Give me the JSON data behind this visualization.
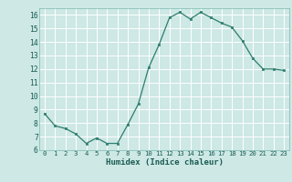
{
  "x": [
    0,
    1,
    2,
    3,
    4,
    5,
    6,
    7,
    8,
    9,
    10,
    11,
    12,
    13,
    14,
    15,
    16,
    17,
    18,
    19,
    20,
    21,
    22,
    23
  ],
  "y": [
    8.7,
    7.8,
    7.6,
    7.2,
    6.5,
    6.9,
    6.5,
    6.5,
    7.9,
    9.4,
    12.1,
    13.8,
    15.8,
    16.2,
    15.7,
    16.2,
    15.8,
    15.4,
    15.1,
    14.1,
    12.8,
    12.0,
    12.0,
    11.9
  ],
  "xlabel": "Humidex (Indice chaleur)",
  "ylim": [
    6,
    16.5
  ],
  "yticks": [
    6,
    7,
    8,
    9,
    10,
    11,
    12,
    13,
    14,
    15,
    16
  ],
  "xticks": [
    0,
    1,
    2,
    3,
    4,
    5,
    6,
    7,
    8,
    9,
    10,
    11,
    12,
    13,
    14,
    15,
    16,
    17,
    18,
    19,
    20,
    21,
    22,
    23
  ],
  "xtick_labels": [
    "0",
    "1",
    "2",
    "3",
    "4",
    "5",
    "6",
    "7",
    "8",
    "9",
    "10",
    "11",
    "12",
    "13",
    "14",
    "15",
    "16",
    "17",
    "18",
    "19",
    "20",
    "21",
    "22",
    "23"
  ],
  "line_color": "#2e7d6e",
  "marker_color": "#2e7d6e",
  "bg_color": "#cde8e5",
  "grid_color": "#ffffff",
  "plot_bg": "#cde8e5"
}
